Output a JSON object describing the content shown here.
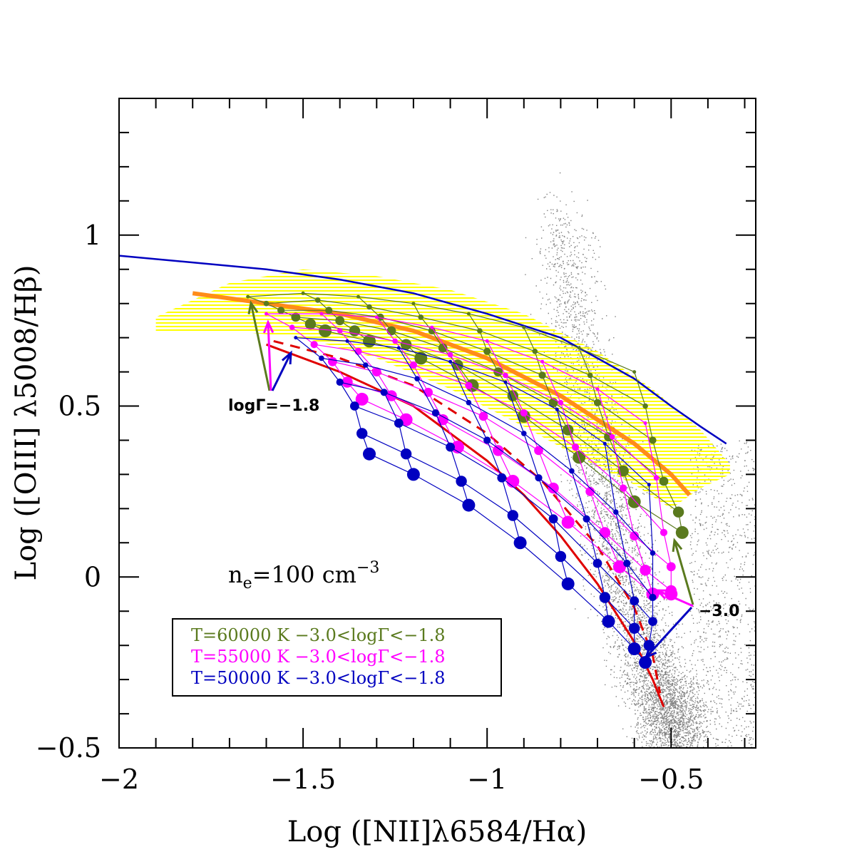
{
  "chart_data": {
    "type": "scatter",
    "xlabel": "Log ([NII]λ6584/Hα)",
    "ylabel": "Log ([OIII] λ5008/Hβ)",
    "xlim": [
      -2.0,
      -0.27
    ],
    "ylim": [
      -0.5,
      1.4
    ],
    "x_ticks": [
      {
        "value": -2,
        "label": "−2"
      },
      {
        "value": -1.5,
        "label": "−1.5"
      },
      {
        "value": -1,
        "label": "−1"
      },
      {
        "value": -0.5,
        "label": "−0.5"
      }
    ],
    "y_ticks": [
      {
        "value": -0.5,
        "label": "−0.5"
      },
      {
        "value": 0,
        "label": "0"
      },
      {
        "value": 0.5,
        "label": "0.5"
      },
      {
        "value": 1,
        "label": "1"
      }
    ],
    "annotations": {
      "density": "ne=100 cm−3",
      "density_base": "n",
      "density_sub": "e",
      "density_mid": "=100  cm",
      "density_sup": "−3",
      "loggamma_high": "logΓ=−1.8",
      "loggamma_low": "−3.0"
    },
    "legend": [
      {
        "label": "T=60000 K  −3.0<logΓ<−1.8",
        "color": "#5a7a1e"
      },
      {
        "label": "T=55000 K  −3.0<logΓ<−1.8",
        "color": "#ff00ff"
      },
      {
        "label": "T=50000 K  −3.0<logΓ<−1.8",
        "color": "#0000c0"
      }
    ],
    "colors": {
      "kewley_line": "#0000c0",
      "kauffmann_line": "#e00000",
      "fit_line": "#ff8c1a",
      "hatch_region": "#ffff00",
      "background_points": "#808080"
    },
    "curves": {
      "kewley_max_starburst": {
        "x": [
          -2.0,
          -1.8,
          -1.6,
          -1.4,
          -1.2,
          -1.0,
          -0.8,
          -0.6,
          -0.5,
          -0.42,
          -0.35
        ],
        "y": [
          0.94,
          0.92,
          0.9,
          0.87,
          0.83,
          0.77,
          0.7,
          0.58,
          0.5,
          0.44,
          0.39
        ]
      },
      "kauffmann_solid": {
        "x": [
          -1.6,
          -1.4,
          -1.2,
          -1.0,
          -0.9,
          -0.8,
          -0.7,
          -0.6,
          -0.55,
          -0.52
        ],
        "y": [
          0.68,
          0.6,
          0.5,
          0.34,
          0.24,
          0.12,
          -0.02,
          -0.19,
          -0.3,
          -0.38
        ]
      },
      "kauffmann_dashed": {
        "x": [
          -1.58,
          -1.4,
          -1.2,
          -1.0,
          -0.85,
          -0.7,
          -0.6,
          -0.55,
          -0.53
        ],
        "y": [
          0.69,
          0.64,
          0.56,
          0.42,
          0.28,
          0.09,
          -0.09,
          -0.23,
          -0.34
        ]
      },
      "fit_orange": {
        "x": [
          -1.8,
          -1.6,
          -1.4,
          -1.2,
          -1.0,
          -0.8,
          -0.7,
          -0.6,
          -0.5,
          -0.45
        ],
        "y": [
          0.83,
          0.8,
          0.77,
          0.72,
          0.64,
          0.53,
          0.46,
          0.39,
          0.3,
          0.24
        ]
      }
    },
    "series": [
      {
        "name": "T=60000 K",
        "color": "#5a7a1e",
        "grid_x": [
          [
            -1.65,
            -1.5,
            -1.35,
            -1.2,
            -1.05,
            -0.9,
            -0.75,
            -0.6
          ],
          [
            -1.6,
            -1.46,
            -1.32,
            -1.18,
            -1.02,
            -0.87,
            -0.72,
            -0.57
          ],
          [
            -1.56,
            -1.43,
            -1.29,
            -1.15,
            -1.0,
            -0.85,
            -0.7,
            -0.55
          ],
          [
            -1.52,
            -1.4,
            -1.26,
            -1.12,
            -0.97,
            -0.82,
            -0.67,
            -0.52
          ],
          [
            -1.48,
            -1.36,
            -1.22,
            -1.08,
            -0.93,
            -0.78,
            -0.63,
            -0.48
          ],
          [
            -1.44,
            -1.32,
            -1.18,
            -1.04,
            -0.9,
            -0.75,
            -0.6,
            -0.47
          ]
        ],
        "grid_y": [
          [
            0.82,
            0.83,
            0.82,
            0.8,
            0.77,
            0.73,
            0.67,
            0.6
          ],
          [
            0.8,
            0.81,
            0.79,
            0.76,
            0.72,
            0.66,
            0.59,
            0.5
          ],
          [
            0.78,
            0.78,
            0.76,
            0.72,
            0.66,
            0.59,
            0.51,
            0.4
          ],
          [
            0.76,
            0.75,
            0.72,
            0.67,
            0.6,
            0.51,
            0.41,
            0.28
          ],
          [
            0.74,
            0.72,
            0.68,
            0.62,
            0.53,
            0.43,
            0.31,
            0.19
          ],
          [
            0.72,
            0.69,
            0.64,
            0.56,
            0.47,
            0.35,
            0.22,
            0.13
          ]
        ]
      },
      {
        "name": "T=55000 K",
        "color": "#ff00ff",
        "grid_x": [
          [
            -1.6,
            -1.45,
            -1.3,
            -1.15,
            -1.0,
            -0.85,
            -0.7,
            -0.57
          ],
          [
            -1.53,
            -1.4,
            -1.25,
            -1.1,
            -0.95,
            -0.8,
            -0.66,
            -0.54
          ],
          [
            -1.47,
            -1.35,
            -1.2,
            -1.05,
            -0.9,
            -0.76,
            -0.63,
            -0.52
          ],
          [
            -1.42,
            -1.3,
            -1.16,
            -1.01,
            -0.86,
            -0.72,
            -0.6,
            -0.5
          ],
          [
            -1.38,
            -1.26,
            -1.12,
            -0.97,
            -0.82,
            -0.68,
            -0.57,
            -0.5
          ],
          [
            -1.34,
            -1.22,
            -1.08,
            -0.93,
            -0.78,
            -0.64,
            -0.55,
            -0.5
          ]
        ],
        "grid_y": [
          [
            0.77,
            0.77,
            0.76,
            0.73,
            0.69,
            0.63,
            0.55,
            0.45
          ],
          [
            0.73,
            0.72,
            0.69,
            0.65,
            0.59,
            0.51,
            0.41,
            0.29
          ],
          [
            0.68,
            0.66,
            0.62,
            0.56,
            0.48,
            0.38,
            0.26,
            0.13
          ],
          [
            0.63,
            0.6,
            0.54,
            0.47,
            0.37,
            0.25,
            0.12,
            0.03
          ],
          [
            0.57,
            0.53,
            0.46,
            0.37,
            0.26,
            0.13,
            0.02,
            -0.04
          ],
          [
            0.52,
            0.46,
            0.38,
            0.28,
            0.16,
            0.03,
            -0.05,
            -0.05
          ]
        ]
      },
      {
        "name": "T=50000 K",
        "color": "#0000c0",
        "grid_x": [
          [
            -1.52,
            -1.38,
            -1.24,
            -1.1,
            -0.95,
            -0.81,
            -0.68,
            -0.56
          ],
          [
            -1.45,
            -1.33,
            -1.19,
            -1.05,
            -0.9,
            -0.77,
            -0.65,
            -0.55
          ],
          [
            -1.4,
            -1.28,
            -1.14,
            -1.0,
            -0.86,
            -0.73,
            -0.62,
            -0.55
          ],
          [
            -1.36,
            -1.24,
            -1.1,
            -0.96,
            -0.82,
            -0.7,
            -0.6,
            -0.55
          ],
          [
            -1.34,
            -1.22,
            -1.07,
            -0.93,
            -0.8,
            -0.68,
            -0.6,
            -0.56
          ],
          [
            -1.32,
            -1.2,
            -1.05,
            -0.91,
            -0.78,
            -0.67,
            -0.6,
            -0.57
          ]
        ],
        "grid_y": [
          [
            0.7,
            0.69,
            0.67,
            0.63,
            0.57,
            0.49,
            0.39,
            0.27
          ],
          [
            0.64,
            0.62,
            0.58,
            0.51,
            0.42,
            0.31,
            0.19,
            0.07
          ],
          [
            0.57,
            0.54,
            0.48,
            0.4,
            0.29,
            0.17,
            0.04,
            -0.06
          ],
          [
            0.5,
            0.45,
            0.38,
            0.29,
            0.17,
            0.04,
            -0.07,
            -0.13
          ],
          [
            0.42,
            0.36,
            0.28,
            0.18,
            0.06,
            -0.06,
            -0.15,
            -0.2
          ],
          [
            0.36,
            0.3,
            0.21,
            0.1,
            -0.02,
            -0.13,
            -0.21,
            -0.25
          ]
        ]
      }
    ]
  }
}
